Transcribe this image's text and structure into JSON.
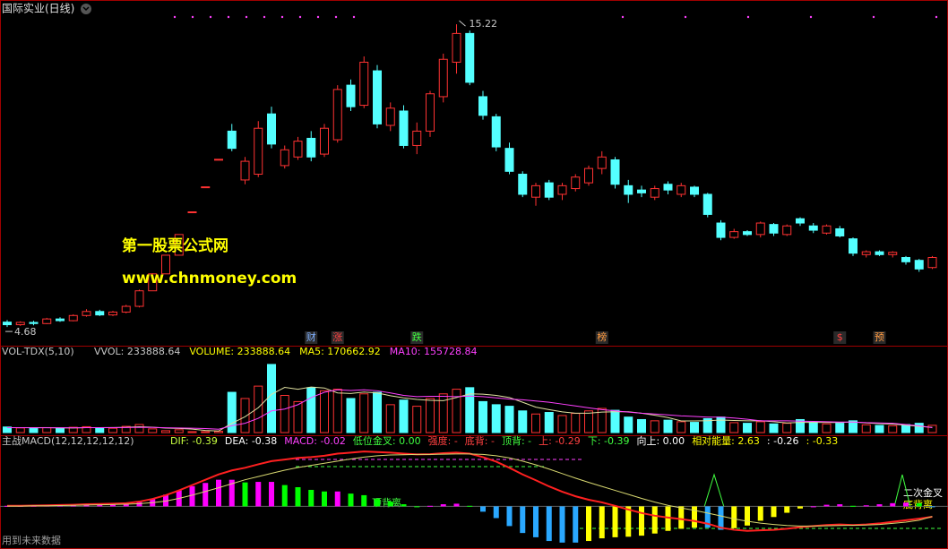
{
  "chart_data": [
    {
      "type": "candlestick",
      "title": "国际实业(日线)",
      "open": [
        4.85,
        4.76,
        4.84,
        4.8,
        4.96,
        4.9,
        5.08,
        5.22,
        5.1,
        5.2,
        5.4,
        5.94,
        6.53,
        7.18,
        8.69,
        9.56,
        10.52,
        11.5,
        9.8,
        10.0,
        12.1,
        10.3,
        10.6,
        11.25,
        10.7,
        11.2,
        13.1,
        12.4,
        13.6,
        11.7,
        12.2,
        11.0,
        11.5,
        12.7,
        13.9,
        14.9,
        12.7,
        12.0,
        10.9,
        10.0,
        9.2,
        9.7,
        9.3,
        9.5,
        9.7,
        10.2,
        10.5,
        9.6,
        9.45,
        9.2,
        9.65,
        9.3,
        9.55,
        9.3,
        8.3,
        7.8,
        8.0,
        7.9,
        8.25,
        7.9,
        8.45,
        8.2,
        7.95,
        8.1,
        7.75,
        7.2,
        7.3,
        7.2,
        7.1,
        7.0,
        6.75
      ],
      "high": [
        4.92,
        4.88,
        4.9,
        5.0,
        5.02,
        5.12,
        5.3,
        5.28,
        5.24,
        5.45,
        5.98,
        6.55,
        7.18,
        7.9,
        8.69,
        9.56,
        10.52,
        11.75,
        10.6,
        11.85,
        12.35,
        11.0,
        11.3,
        11.5,
        11.75,
        13.1,
        13.3,
        14.1,
        13.8,
        12.5,
        12.4,
        11.8,
        12.9,
        14.2,
        15.22,
        15.0,
        12.9,
        12.1,
        11.1,
        10.1,
        9.7,
        9.8,
        9.7,
        10.0,
        10.3,
        10.8,
        10.6,
        9.8,
        9.6,
        9.6,
        9.75,
        9.7,
        9.6,
        9.35,
        8.4,
        8.1,
        8.05,
        8.35,
        8.3,
        8.25,
        8.5,
        8.3,
        8.25,
        8.2,
        7.8,
        7.35,
        7.35,
        7.32,
        7.15,
        7.05,
        7.15
      ],
      "low": [
        4.68,
        4.72,
        4.74,
        4.78,
        4.86,
        4.88,
        5.04,
        5.06,
        5.06,
        5.16,
        5.36,
        5.94,
        6.53,
        7.18,
        8.69,
        9.56,
        10.52,
        10.8,
        9.65,
        9.9,
        10.9,
        10.2,
        10.5,
        10.45,
        10.6,
        11.1,
        12.2,
        12.3,
        11.6,
        11.5,
        10.9,
        10.7,
        11.3,
        12.5,
        13.5,
        13.1,
        11.9,
        10.8,
        10.0,
        9.2,
        8.9,
        9.1,
        9.1,
        9.4,
        9.6,
        10.0,
        9.5,
        9.0,
        9.2,
        9.1,
        9.3,
        9.2,
        9.2,
        8.5,
        7.7,
        7.75,
        7.85,
        7.8,
        7.85,
        7.85,
        8.2,
        7.95,
        7.9,
        7.8,
        7.15,
        7.1,
        7.15,
        7.1,
        6.85,
        6.6,
        6.7
      ],
      "close": [
        4.76,
        4.84,
        4.8,
        4.96,
        4.9,
        5.08,
        5.22,
        5.1,
        5.2,
        5.4,
        5.94,
        6.53,
        7.18,
        7.9,
        8.69,
        9.56,
        10.52,
        10.9,
        10.45,
        11.6,
        11.05,
        10.85,
        11.15,
        10.6,
        11.6,
        12.95,
        12.35,
        13.9,
        11.75,
        12.3,
        11.0,
        11.5,
        12.8,
        14.0,
        14.9,
        13.2,
        12.05,
        10.95,
        10.1,
        9.3,
        9.6,
        9.2,
        9.6,
        9.9,
        10.2,
        10.6,
        9.65,
        9.3,
        9.35,
        9.5,
        9.45,
        9.6,
        9.3,
        8.6,
        7.8,
        8.0,
        7.9,
        8.3,
        7.95,
        8.2,
        8.3,
        8.05,
        8.2,
        7.85,
        7.25,
        7.3,
        7.2,
        7.28,
        6.95,
        6.7,
        7.1
      ],
      "ylim": [
        4.06,
        15.91
      ],
      "up_color": "#ff3232",
      "down_color": "#54ffff",
      "events": [
        {
          "label": "财",
          "index": 23,
          "color": "#7fb0ff"
        },
        {
          "label": "涨",
          "index": 25,
          "color": "#ff4040"
        },
        {
          "label": "跌",
          "index": 31,
          "color": "#40ff40"
        },
        {
          "label": "榜",
          "index": 45,
          "color": "#ff9a40"
        },
        {
          "label": "$",
          "index": 63,
          "color": "#ff4040"
        },
        {
          "label": "预",
          "index": 66,
          "color": "#ff9a40"
        }
      ]
    },
    {
      "type": "bar",
      "title": "VOL-TDX(5,10)",
      "legend": [
        {
          "text": "VVOL: 233888.64",
          "color": "#c8c8c8"
        },
        {
          "text": "VOLUME: 233888.64",
          "color": "#ffff00"
        },
        {
          "text": "MA5: 170662.92",
          "color": "#ffff00"
        },
        {
          "text": "MA10: 155728.84",
          "color": "#ff40ff"
        }
      ],
      "values": [
        180000,
        150000,
        140000,
        160000,
        130000,
        170000,
        190000,
        150000,
        140000,
        200000,
        260000,
        120000,
        60000,
        90000,
        30000,
        30000,
        40000,
        1300000,
        1100000,
        1500000,
        2200000,
        1200000,
        1000000,
        1450000,
        1350000,
        1400000,
        1100000,
        1250000,
        1300000,
        900000,
        1050000,
        850000,
        1100000,
        1250000,
        1400000,
        1450000,
        1000000,
        900000,
        850000,
        700000,
        600000,
        650000,
        550000,
        620000,
        700000,
        780000,
        720000,
        500000,
        420000,
        380000,
        400000,
        350000,
        330000,
        450000,
        500000,
        320000,
        300000,
        350000,
        280000,
        300000,
        420000,
        330000,
        280000,
        300000,
        380000,
        250000,
        230000,
        220000,
        260000,
        300000,
        233888.64
      ],
      "lines": [
        {
          "color": "#e0e0a0",
          "values": [
            160000,
            160000,
            160000,
            160000,
            152000,
            150000,
            158000,
            158000,
            162000,
            170000,
            188000,
            174000,
            146000,
            134000,
            112000,
            70000,
            50000,
            298000,
            512000,
            802000,
            1234000,
            1460000,
            1400000,
            1470000,
            1440000,
            1280000,
            1260000,
            1310000,
            1280000,
            1190000,
            1120000,
            1070000,
            1040000,
            1030000,
            1130000,
            1250000,
            1240000,
            1200000,
            1130000,
            980000,
            820000,
            740000,
            670000,
            624000,
            624000,
            660000,
            674000,
            674000,
            624000,
            560000,
            484000,
            376000,
            376000,
            382000,
            406000,
            390000,
            380000,
            383000,
            350000,
            310000,
            330000,
            330000,
            326000,
            326000,
            342000,
            312000,
            288000,
            276000,
            240000,
            200000,
            170662.92
          ]
        },
        {
          "color": "#ff40ff",
          "values": [
            160000,
            158000,
            156000,
            156000,
            155000,
            156000,
            158000,
            160000,
            160000,
            162000,
            170000,
            168000,
            154000,
            148000,
            140000,
            130000,
            110000,
            220000,
            300000,
            460000,
            700000,
            760000,
            900000,
            1130000,
            1300000,
            1380000,
            1360000,
            1380000,
            1350000,
            1280000,
            1200000,
            1160000,
            1170000,
            1170000,
            1160000,
            1180000,
            1160000,
            1120000,
            1080000,
            1060000,
            1020000,
            980000,
            920000,
            860000,
            800000,
            740000,
            700000,
            660000,
            624000,
            600000,
            570000,
            540000,
            520000,
            500000,
            500000,
            470000,
            430000,
            380000,
            380000,
            380000,
            370000,
            360000,
            350000,
            340000,
            340000,
            320000,
            310000,
            300000,
            260000,
            220000,
            155728.84
          ]
        }
      ],
      "ylim": [
        0,
        2400000
      ],
      "up_color": "#ff3232",
      "down_color": "#54ffff"
    },
    {
      "type": "macd",
      "title": "主战MACD(12,12,12,12,12)",
      "legend": [
        {
          "text": "DIF: -0.39",
          "color": "#c8ff40"
        },
        {
          "text": "DEA: -0.38",
          "color": "#ffffff"
        },
        {
          "text": "MACD: -0.02",
          "color": "#ff40ff"
        },
        {
          "text": "低位金叉: 0.00",
          "color": "#40ff40"
        },
        {
          "text": "强度: -",
          "color": "#ff4040"
        },
        {
          "text": "底背: -",
          "color": "#ff4040"
        },
        {
          "text": "顶背: -",
          "color": "#40ff40"
        },
        {
          "text": "上: -0.29",
          "color": "#ff4040"
        },
        {
          "text": "下: -0.39",
          "color": "#40ff40"
        },
        {
          "text": "向上: 0.00",
          "color": "#ffffff"
        },
        {
          "text": "相对能量: 2.63",
          "color": "#ffff00"
        },
        {
          "text": ": -0.26",
          "color": "#ffffff"
        },
        {
          "text": ": -0.33",
          "color": "#ffff00"
        }
      ],
      "dif": {
        "color": "#ff2020",
        "values": [
          0.02,
          0.02,
          0.03,
          0.04,
          0.05,
          0.06,
          0.08,
          0.09,
          0.1,
          0.12,
          0.18,
          0.28,
          0.42,
          0.6,
          0.8,
          1.0,
          1.2,
          1.35,
          1.45,
          1.58,
          1.7,
          1.76,
          1.82,
          1.85,
          1.9,
          1.98,
          2.02,
          2.06,
          2.04,
          2.02,
          1.98,
          1.95,
          1.96,
          2.0,
          2.02,
          1.98,
          1.85,
          1.68,
          1.45,
          1.2,
          0.98,
          0.75,
          0.55,
          0.38,
          0.25,
          0.15,
          0.02,
          -0.12,
          -0.25,
          -0.35,
          -0.42,
          -0.48,
          -0.55,
          -0.65,
          -0.8,
          -0.88,
          -0.92,
          -0.9,
          -0.88,
          -0.84,
          -0.78,
          -0.74,
          -0.7,
          -0.68,
          -0.7,
          -0.68,
          -0.64,
          -0.58,
          -0.52,
          -0.46,
          -0.39
        ]
      },
      "dea": {
        "color": "#d8d870",
        "values": [
          0.01,
          0.01,
          0.02,
          0.02,
          0.03,
          0.04,
          0.05,
          0.06,
          0.07,
          0.08,
          0.1,
          0.14,
          0.2,
          0.3,
          0.42,
          0.56,
          0.7,
          0.85,
          1.0,
          1.12,
          1.24,
          1.36,
          1.46,
          1.54,
          1.62,
          1.7,
          1.78,
          1.85,
          1.9,
          1.93,
          1.94,
          1.95,
          1.95,
          1.96,
          1.97,
          1.97,
          1.95,
          1.9,
          1.82,
          1.7,
          1.56,
          1.4,
          1.23,
          1.06,
          0.9,
          0.75,
          0.6,
          0.45,
          0.3,
          0.16,
          0.04,
          -0.06,
          -0.15,
          -0.25,
          -0.36,
          -0.47,
          -0.56,
          -0.63,
          -0.68,
          -0.72,
          -0.74,
          -0.74,
          -0.73,
          -0.72,
          -0.71,
          -0.7,
          -0.68,
          -0.64,
          -0.59,
          -0.52,
          -0.38
        ]
      },
      "bars": [
        0.02,
        0.02,
        0.02,
        0.04,
        0.04,
        0.04,
        0.06,
        0.06,
        0.06,
        0.08,
        0.16,
        0.28,
        0.44,
        0.6,
        0.76,
        0.88,
        1.0,
        1.0,
        0.9,
        0.92,
        0.92,
        0.8,
        0.72,
        0.62,
        0.56,
        0.56,
        0.48,
        0.42,
        0.28,
        0.18,
        0.08,
        0.0,
        0.02,
        0.08,
        0.1,
        0.02,
        -0.2,
        -0.44,
        -0.74,
        -1.0,
        -1.16,
        -1.3,
        -1.36,
        -1.36,
        -1.3,
        -1.2,
        -1.16,
        -1.14,
        -1.1,
        -1.02,
        -0.92,
        -0.84,
        -0.8,
        -0.8,
        -0.88,
        -0.82,
        -0.72,
        -0.54,
        -0.4,
        -0.24,
        -0.08,
        0.0,
        0.06,
        0.08,
        0.02,
        0.04,
        0.08,
        0.12,
        0.14,
        0.12,
        -0.02
      ],
      "bar_colors": {
        "positive_rising": "#ff00ff",
        "positive_falling": "#00ff00",
        "negative_falling": "#2aa8ff",
        "negative_rising": "#ffff00"
      },
      "ylim": [
        -1.5,
        2.2
      ],
      "annotations": [
        {
          "text": "顶背离",
          "color": "#40ff40"
        },
        {
          "text": "二次金叉",
          "color": "#ffffff"
        },
        {
          "text": "底背离",
          "color": "#ffff00"
        }
      ],
      "footnote": "用到未来数据"
    }
  ],
  "watermark": [
    "第一股票公式网",
    "www.chnmoney.com"
  ]
}
